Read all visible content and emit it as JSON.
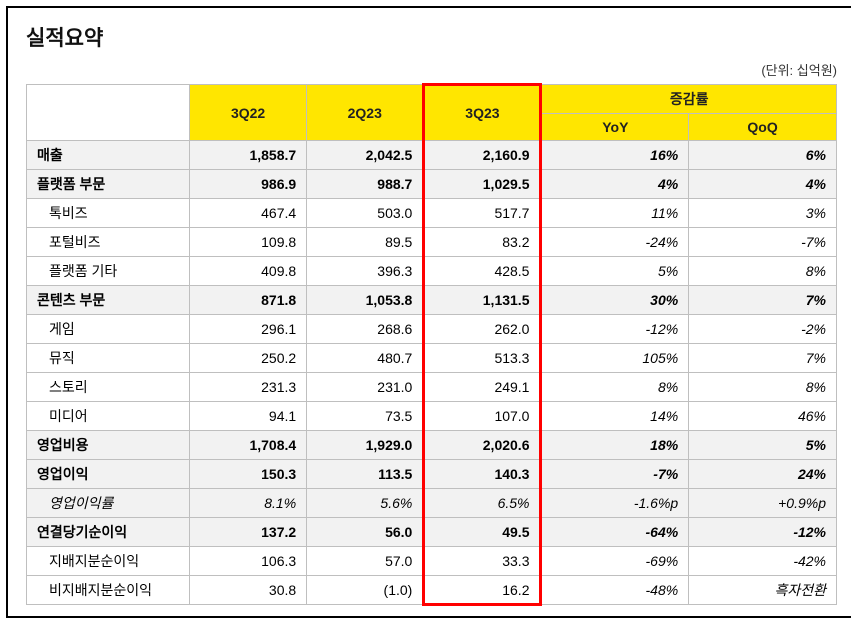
{
  "title": "실적요약",
  "unit": "(단위: 십억원)",
  "headers": {
    "c1": "3Q22",
    "c2": "2Q23",
    "c3": "3Q23",
    "rate_group": "증감률",
    "yoy": "YoY",
    "qoq": "QoQ"
  },
  "highlight_color": "#ff0000",
  "header_bg": "#ffe600",
  "main_bg": "#f2f2f2",
  "rows": [
    {
      "type": "main",
      "label": "매출",
      "v1": "1,858.7",
      "v2": "2,042.5",
      "v3": "2,160.9",
      "yoy": "16%",
      "qoq": "6%"
    },
    {
      "type": "main",
      "label": "플랫폼 부문",
      "v1": "986.9",
      "v2": "988.7",
      "v3": "1,029.5",
      "yoy": "4%",
      "qoq": "4%"
    },
    {
      "type": "sub",
      "label": "톡비즈",
      "v1": "467.4",
      "v2": "503.0",
      "v3": "517.7",
      "yoy": "11%",
      "qoq": "3%"
    },
    {
      "type": "sub",
      "label": "포털비즈",
      "v1": "109.8",
      "v2": "89.5",
      "v3": "83.2",
      "yoy": "-24%",
      "qoq": "-7%"
    },
    {
      "type": "sub",
      "label": "플랫폼 기타",
      "v1": "409.8",
      "v2": "396.3",
      "v3": "428.5",
      "yoy": "5%",
      "qoq": "8%"
    },
    {
      "type": "main",
      "label": "콘텐츠 부문",
      "v1": "871.8",
      "v2": "1,053.8",
      "v3": "1,131.5",
      "yoy": "30%",
      "qoq": "7%"
    },
    {
      "type": "sub",
      "label": "게임",
      "v1": "296.1",
      "v2": "268.6",
      "v3": "262.0",
      "yoy": "-12%",
      "qoq": "-2%"
    },
    {
      "type": "sub",
      "label": "뮤직",
      "v1": "250.2",
      "v2": "480.7",
      "v3": "513.3",
      "yoy": "105%",
      "qoq": "7%"
    },
    {
      "type": "sub",
      "label": "스토리",
      "v1": "231.3",
      "v2": "231.0",
      "v3": "249.1",
      "yoy": "8%",
      "qoq": "8%"
    },
    {
      "type": "sub",
      "label": "미디어",
      "v1": "94.1",
      "v2": "73.5",
      "v3": "107.0",
      "yoy": "14%",
      "qoq": "46%"
    },
    {
      "type": "main",
      "label": "영업비용",
      "v1": "1,708.4",
      "v2": "1,929.0",
      "v3": "2,020.6",
      "yoy": "18%",
      "qoq": "5%"
    },
    {
      "type": "main",
      "label": "영업이익",
      "v1": "150.3",
      "v2": "113.5",
      "v3": "140.3",
      "yoy": "-7%",
      "qoq": "24%"
    },
    {
      "type": "italic",
      "label": "영업이익률",
      "v1": "8.1%",
      "v2": "5.6%",
      "v3": "6.5%",
      "yoy": "-1.6%p",
      "qoq": "+0.9%p"
    },
    {
      "type": "main",
      "label": "연결당기순이익",
      "v1": "137.2",
      "v2": "56.0",
      "v3": "49.5",
      "yoy": "-64%",
      "qoq": "-12%"
    },
    {
      "type": "sub",
      "label": "지배지분순이익",
      "v1": "106.3",
      "v2": "57.0",
      "v3": "33.3",
      "yoy": "-69%",
      "qoq": "-42%"
    },
    {
      "type": "sub",
      "label": "비지배지분순이익",
      "v1": "30.8",
      "v2": "(1.0)",
      "v3": "16.2",
      "yoy": "-48%",
      "qoq": "흑자전환"
    }
  ]
}
